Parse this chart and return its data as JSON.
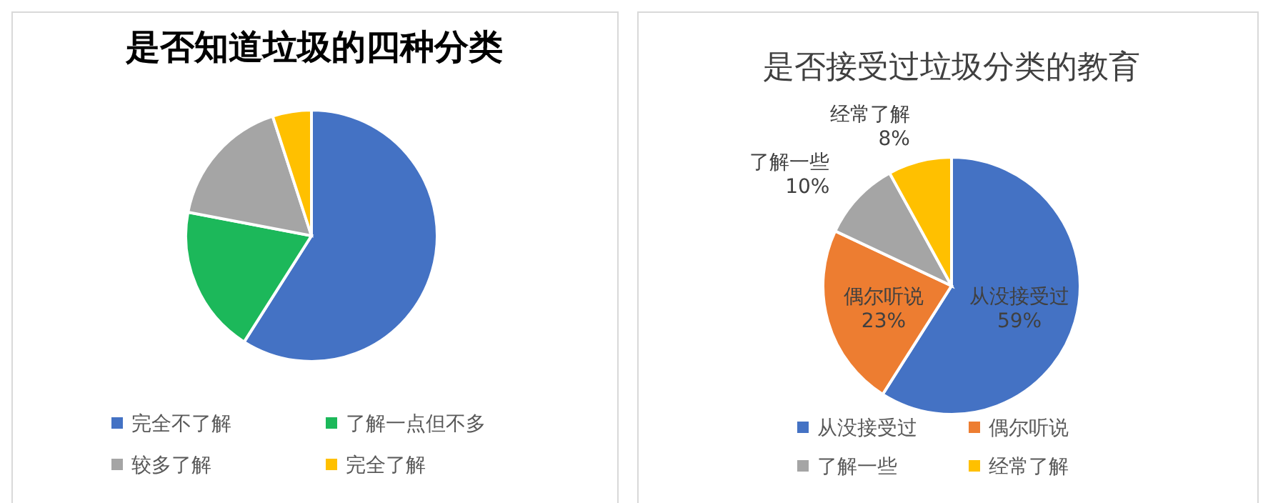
{
  "chart_data": [
    {
      "type": "pie",
      "title": "是否知道垃圾的四种分类",
      "categories": [
        "完全不了解",
        "了解一点但不多",
        "较多了解",
        "完全了解"
      ],
      "values": [
        59,
        19,
        17,
        5
      ],
      "colors": [
        "#4472c4",
        "#1cb85a",
        "#a5a5a5",
        "#ffc000"
      ],
      "legend": "bottom"
    },
    {
      "type": "pie",
      "title": "是否接受过垃圾分类的教育",
      "categories": [
        "从没接受过",
        "偶尔听说",
        "了解一些",
        "经常了解"
      ],
      "values": [
        59,
        23,
        10,
        8
      ],
      "value_labels": [
        "59%",
        "23%",
        "10%",
        "8%"
      ],
      "colors": [
        "#4472c4",
        "#ed7d31",
        "#a5a5a5",
        "#ffc000"
      ],
      "legend": "bottom"
    }
  ]
}
